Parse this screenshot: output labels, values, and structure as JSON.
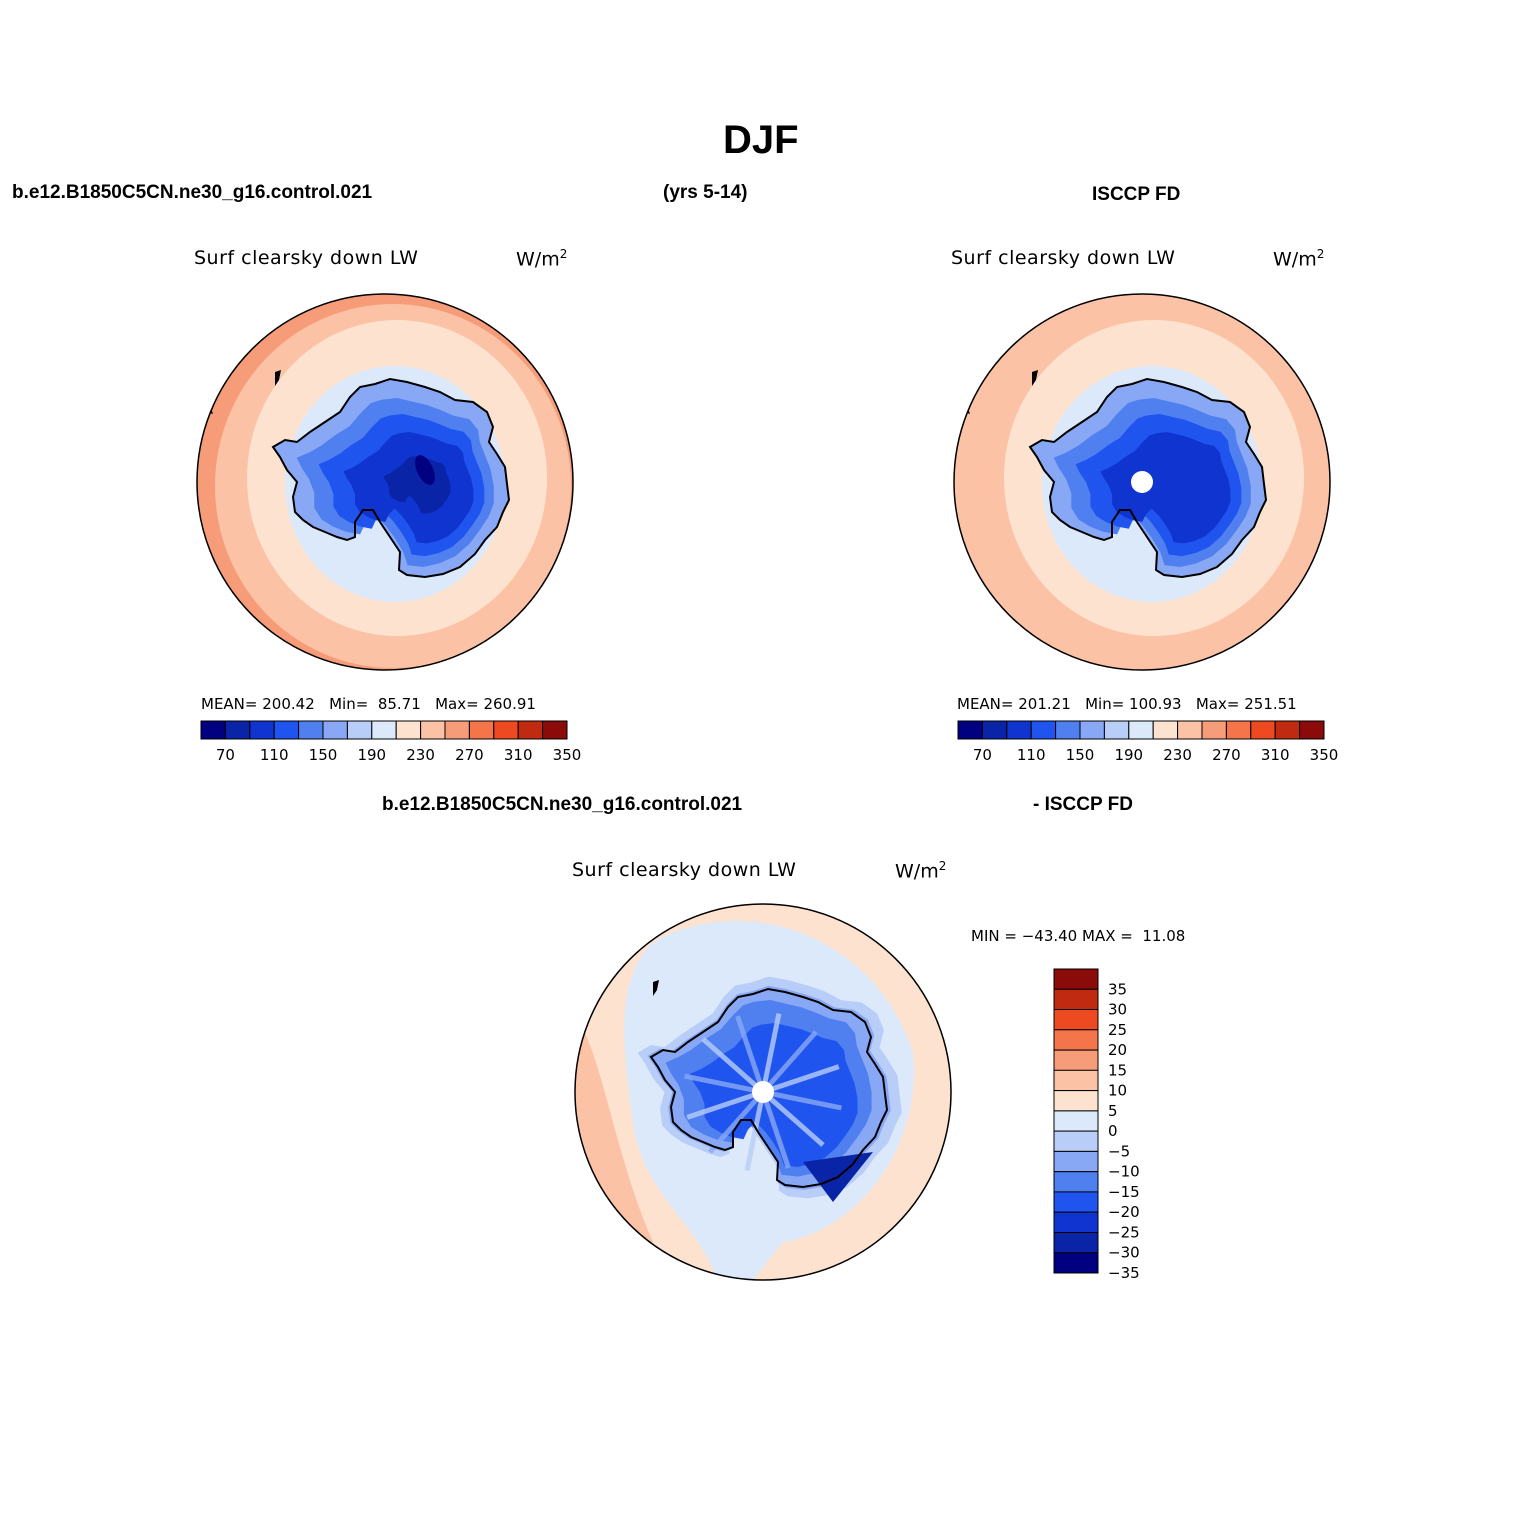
{
  "title": "DJF",
  "header": {
    "case_name": "b.e12.B1850C5CN.ne30_g16.control.021",
    "years": "(yrs 5-14)",
    "obs_name": "ISCCP FD"
  },
  "diff_header": {
    "case_name": "b.e12.B1850C5CN.ne30_g16.control.021",
    "obs_name": "- ISCCP FD"
  },
  "colors": {
    "abs_palette": [
      "#000080",
      "#0a24a8",
      "#1034d0",
      "#1f55ee",
      "#5080f0",
      "#88a8f5",
      "#b8cdf8",
      "#dce9fb",
      "#fde3cf",
      "#fcc2a6",
      "#f79c78",
      "#f5754a",
      "#ed4a22",
      "#c02a10",
      "#8b0a0a"
    ],
    "diff_palette": [
      "#000080",
      "#0a24a8",
      "#1034d0",
      "#1f55ee",
      "#5080f0",
      "#88a8f5",
      "#b8cdf8",
      "#dce9fb",
      "#fde3cf",
      "#fcc2a6",
      "#f79c78",
      "#f5754a",
      "#ed4a22",
      "#c02a10",
      "#8b0a0a"
    ]
  },
  "panels": [
    {
      "title": "Surf clearsky down LW",
      "units": "W/m",
      "units_sup": "2",
      "mean_label": "MEAN=",
      "mean": "200.42",
      "min_label": "Min=",
      "min": "85.71",
      "max_label": "Max=",
      "max": "260.91",
      "colorbar_ticks": [
        "70",
        "110",
        "150",
        "190",
        "230",
        "270",
        "310",
        "350"
      ],
      "rings": [
        260,
        240,
        225,
        205
      ],
      "pole_missing": false
    },
    {
      "title": "Surf clearsky down LW",
      "units": "W/m",
      "units_sup": "2",
      "mean_label": "MEAN=",
      "mean": "201.21",
      "min_label": "Min=",
      "min": "100.93",
      "max_label": "Max=",
      "max": "251.51",
      "colorbar_ticks": [
        "70",
        "110",
        "150",
        "190",
        "230",
        "270",
        "310",
        "350"
      ],
      "rings": [
        245,
        235,
        225,
        205
      ],
      "pole_missing": true
    }
  ],
  "diff_panel": {
    "title": "Surf clearsky down LW",
    "units": "W/m",
    "units_sup": "2",
    "min_label": "MIN =",
    "min": "−43.40",
    "max_label": "MAX =",
    "max": "11.08",
    "colorbar_ticks": [
      "35",
      "30",
      "25",
      "20",
      "15",
      "10",
      "5",
      "0",
      "−5",
      "−10",
      "−15",
      "−20",
      "−25",
      "−30",
      "−35"
    ],
    "pole_missing": true
  }
}
